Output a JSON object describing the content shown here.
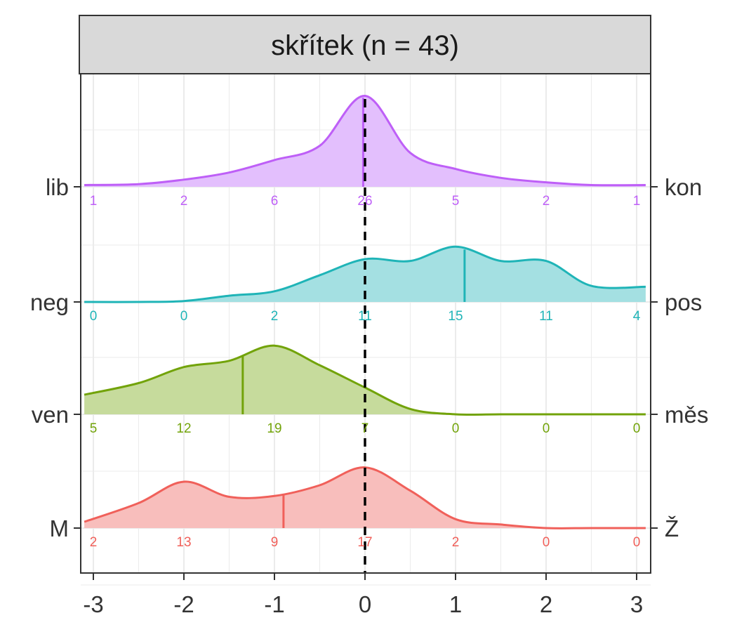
{
  "chart_data": {
    "type": "ridgeline",
    "title": "skřítek (n = 43)",
    "xlabel": "",
    "ylabel": "",
    "xlim": [
      -3.1,
      3.1
    ],
    "x_ticks": [
      -3,
      -2,
      -1,
      0,
      1,
      2,
      3
    ],
    "x_tick_labels": [
      "-3",
      "-2",
      "-1",
      "0",
      "1",
      "2",
      "3"
    ],
    "grid": true,
    "reference_line": {
      "x": 0,
      "style": "dashed",
      "color": "#000000"
    },
    "count_positions": [
      -3,
      -2,
      -1,
      0,
      1,
      2,
      3
    ],
    "density_x": [
      -3.1,
      -2.5,
      -2.0,
      -1.5,
      -1.0,
      -0.5,
      0.0,
      0.5,
      1.0,
      1.5,
      2.0,
      2.5,
      3.1
    ],
    "series": [
      {
        "left_label": "M",
        "right_label": "Ž",
        "color": "#F0605A",
        "fill": "#F8BEBC",
        "counts": [
          2,
          13,
          9,
          17,
          2,
          0,
          0
        ],
        "mean": -0.9,
        "density": [
          0.07,
          0.28,
          0.52,
          0.35,
          0.36,
          0.48,
          0.68,
          0.42,
          0.1,
          0.04,
          0.0,
          0.0,
          0.0
        ]
      },
      {
        "left_label": "ven",
        "right_label": "měs",
        "color": "#72A30A",
        "fill": "#C6DB9C",
        "counts": [
          5,
          12,
          19,
          7,
          0,
          0,
          0
        ],
        "mean": -1.35,
        "density": [
          0.22,
          0.35,
          0.53,
          0.6,
          0.77,
          0.55,
          0.3,
          0.06,
          0.0,
          0.0,
          0.0,
          0.0,
          0.0
        ]
      },
      {
        "left_label": "neg",
        "right_label": "pos",
        "color": "#1FB4B7",
        "fill": "#A4E0E2",
        "counts": [
          0,
          0,
          2,
          11,
          15,
          11,
          4
        ],
        "mean": 1.1,
        "density": [
          0.0,
          0.0,
          0.01,
          0.07,
          0.12,
          0.3,
          0.48,
          0.46,
          0.62,
          0.46,
          0.46,
          0.18,
          0.17
        ]
      },
      {
        "left_label": "lib",
        "right_label": "kon",
        "color": "#BE5FF7",
        "fill": "#E3BFFD",
        "counts": [
          1,
          2,
          6,
          26,
          5,
          2,
          1
        ],
        "mean": -0.02,
        "density": [
          0.02,
          0.03,
          0.08,
          0.16,
          0.3,
          0.46,
          1.02,
          0.38,
          0.2,
          0.1,
          0.05,
          0.02,
          0.02
        ]
      }
    ]
  }
}
